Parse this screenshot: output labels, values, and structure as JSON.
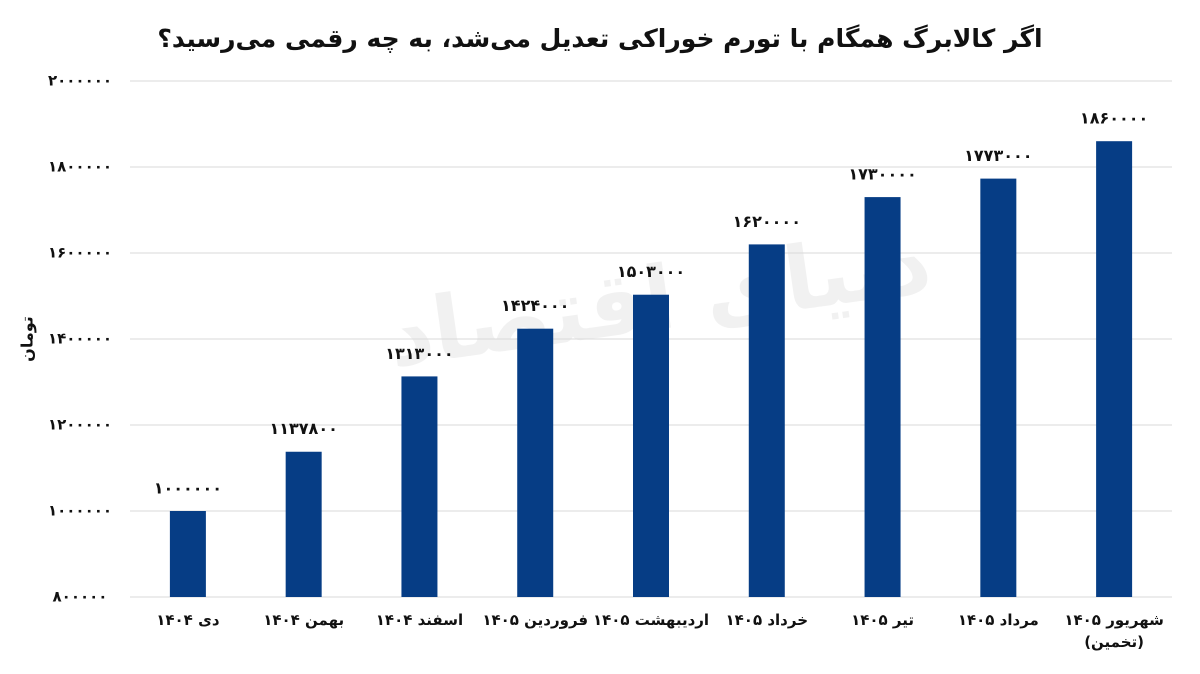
{
  "chart_data": {
    "type": "bar",
    "title": "اگر کالابرگ همگام با تورم خوراکی تعدیل می‌شد، به چه رقمی می‌رسید؟",
    "y_label": "تومان",
    "watermark": "دنیای اقتصاد",
    "categories": [
      "دی ۱۴۰۴",
      "بهمن ۱۴۰۴",
      "اسفند ۱۴۰۴",
      "فروردین ۱۴۰۵",
      "اردیبهشت ۱۴۰۵",
      "خرداد ۱۴۰۵",
      "تیر ۱۴۰۵",
      "مرداد ۱۴۰۵",
      "شهریور ۱۴۰۵\n(تخمین)"
    ],
    "values": [
      1000000,
      1137800,
      1313000,
      1424000,
      1503000,
      1620000,
      1730000,
      1773000,
      1860000
    ],
    "value_labels": [
      "۱۰۰۰۰۰۰",
      "۱۱۳۷۸۰۰",
      "۱۳۱۳۰۰۰",
      "۱۴۲۴۰۰۰",
      "۱۵۰۳۰۰۰",
      "۱۶۲۰۰۰۰",
      "۱۷۳۰۰۰۰",
      "۱۷۷۳۰۰۰",
      "۱۸۶۰۰۰۰"
    ],
    "color": "#063d85",
    "ylim": [
      800000,
      2000000
    ],
    "yticks": [
      {
        "value": 800000,
        "label": "۸۰۰۰۰۰"
      },
      {
        "value": 1000000,
        "label": "۱۰۰۰۰۰۰"
      },
      {
        "value": 1200000,
        "label": "۱۲۰۰۰۰۰"
      },
      {
        "value": 1400000,
        "label": "۱۴۰۰۰۰۰"
      },
      {
        "value": 1600000,
        "label": "۱۶۰۰۰۰۰"
      },
      {
        "value": 1800000,
        "label": "۱۸۰۰۰۰۰"
      },
      {
        "value": 2000000,
        "label": "۲۰۰۰۰۰۰"
      }
    ],
    "grid": true
  }
}
